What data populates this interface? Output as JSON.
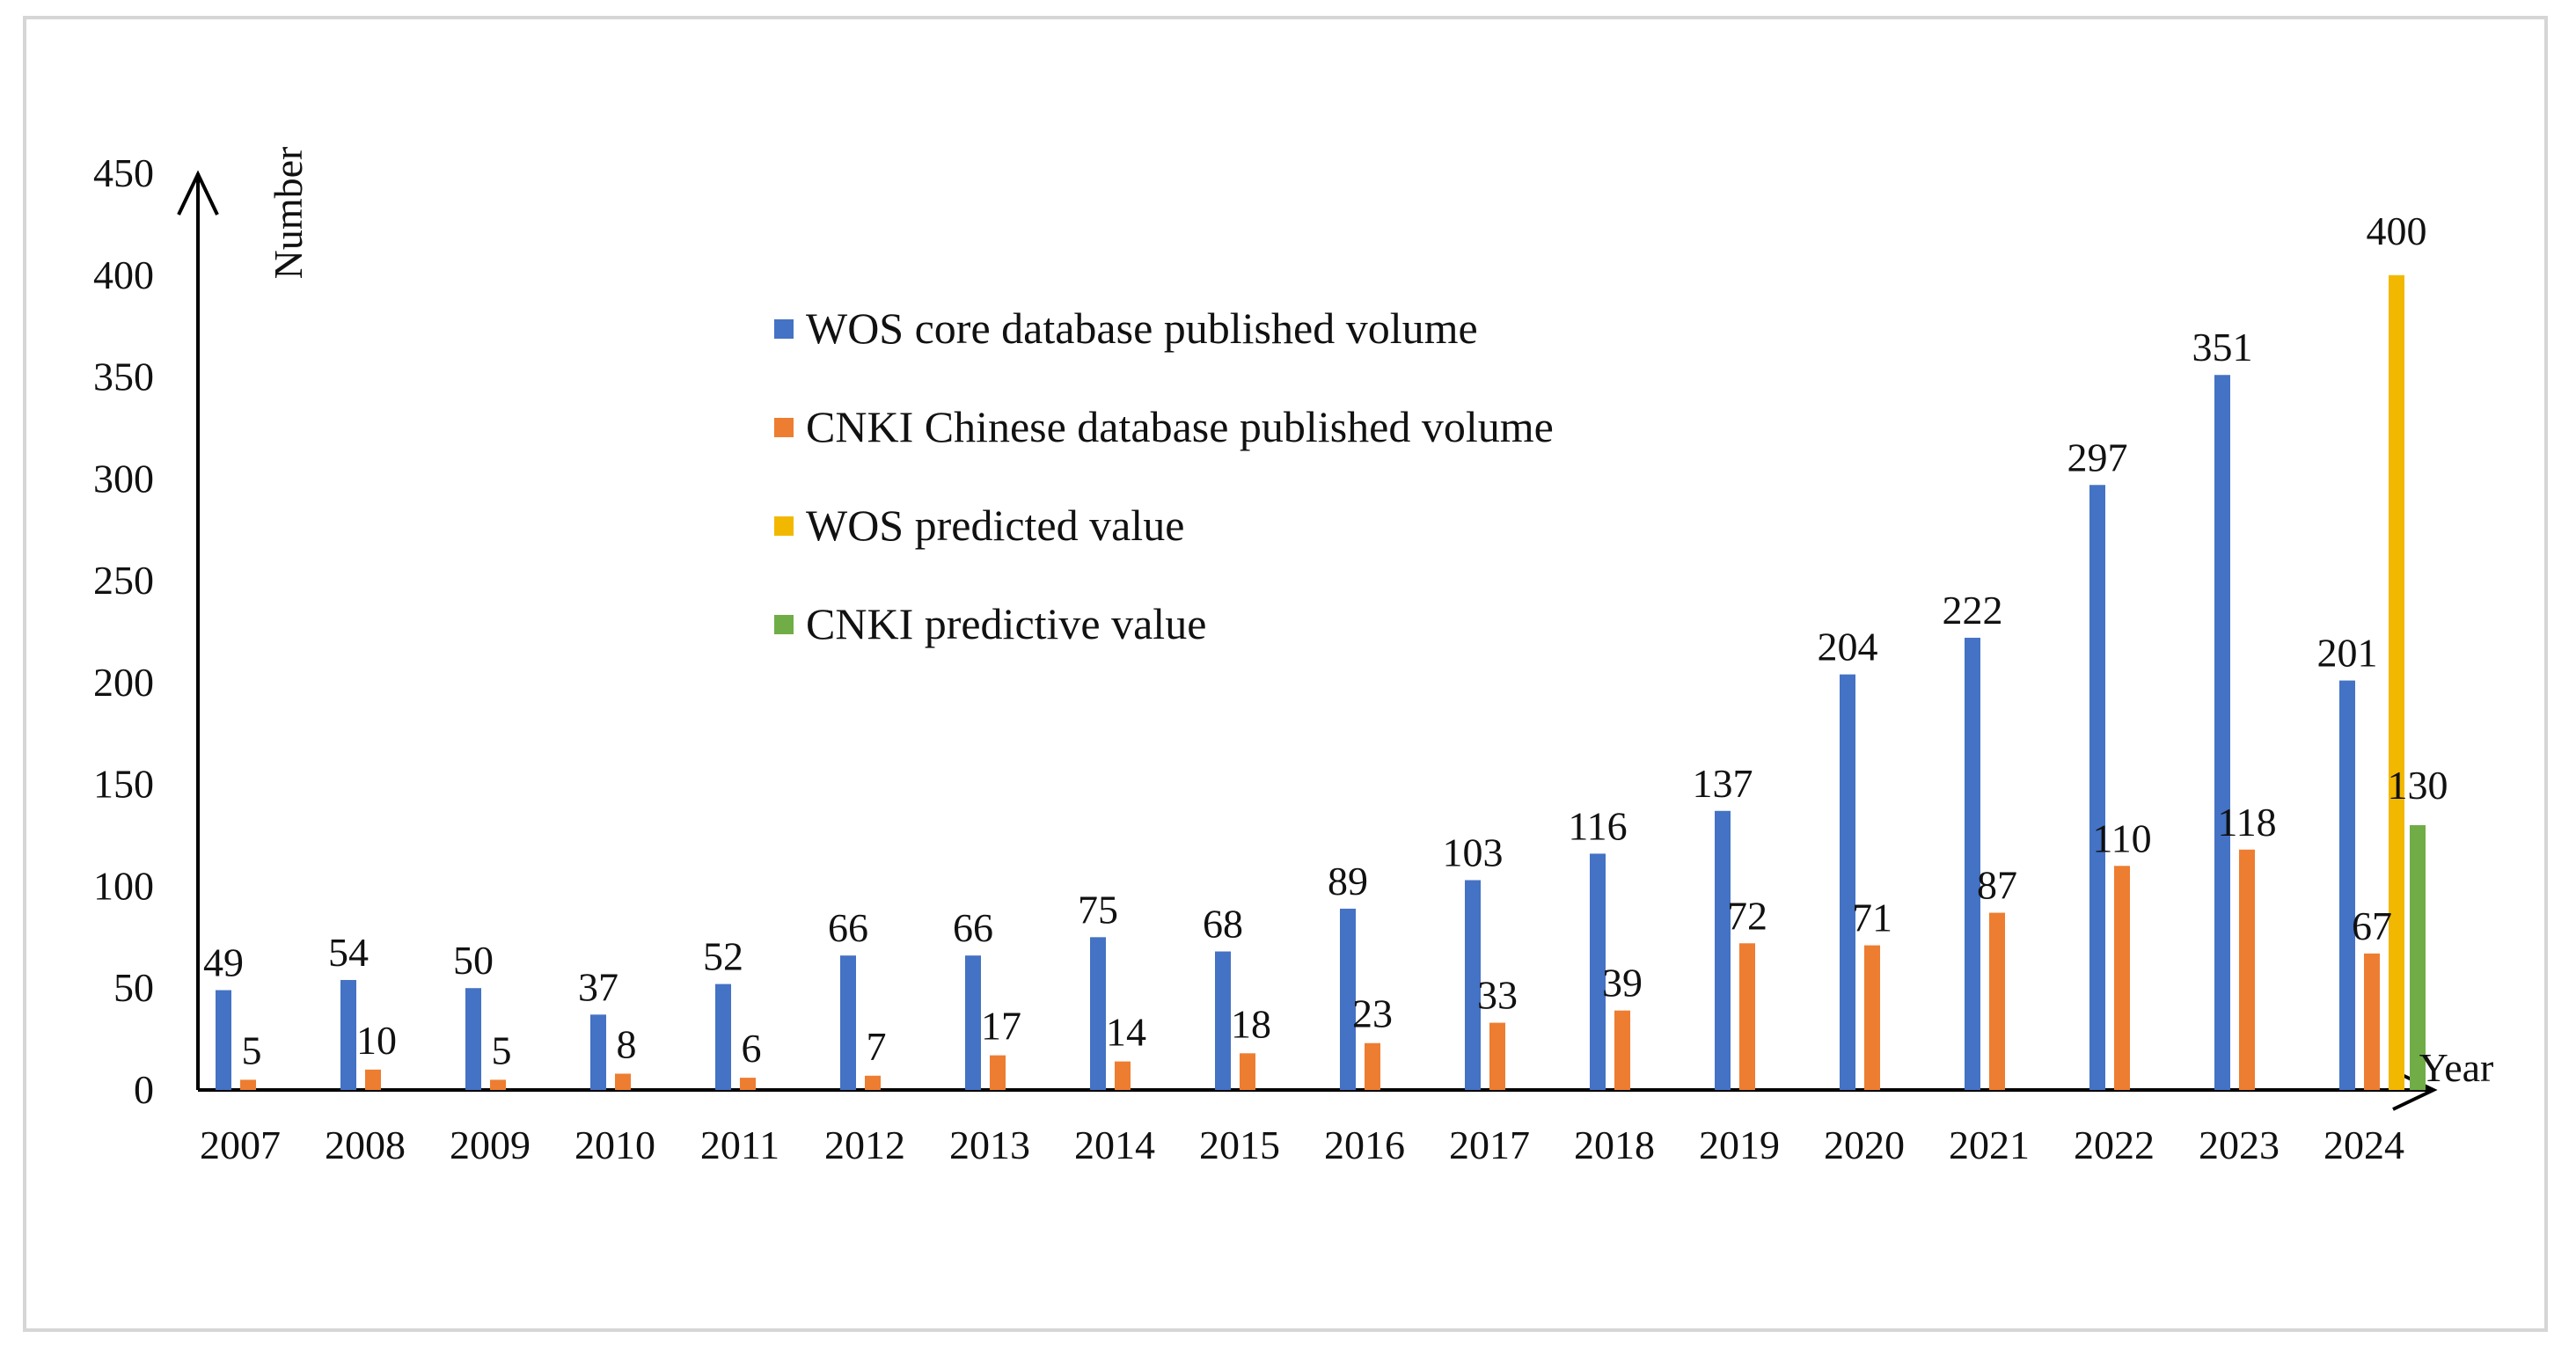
{
  "chart_data": {
    "type": "bar",
    "title": "",
    "xlabel": "Year",
    "ylabel": "Number",
    "ylim": [
      0,
      450
    ],
    "yticks": [
      0,
      50,
      100,
      150,
      200,
      250,
      300,
      350,
      400,
      450
    ],
    "categories": [
      "2007",
      "2008",
      "2009",
      "2010",
      "2011",
      "2012",
      "2013",
      "2014",
      "2015",
      "2016",
      "2017",
      "2018",
      "2019",
      "2020",
      "2021",
      "2022",
      "2023",
      "2024"
    ],
    "series": [
      {
        "name": "WOS core database published volume",
        "color": "#4472C4",
        "values": [
          49,
          54,
          50,
          37,
          52,
          66,
          66,
          75,
          68,
          89,
          103,
          116,
          137,
          204,
          222,
          297,
          351,
          201
        ]
      },
      {
        "name": "CNKI Chinese database published volume",
        "color": "#ED7D31",
        "values": [
          5,
          10,
          5,
          8,
          6,
          7,
          17,
          14,
          18,
          23,
          33,
          39,
          72,
          71,
          87,
          110,
          118,
          67
        ]
      },
      {
        "name": "WOS predicted value",
        "color": "#F2B800",
        "values": [
          null,
          null,
          null,
          null,
          null,
          null,
          null,
          null,
          null,
          null,
          null,
          null,
          null,
          null,
          null,
          null,
          null,
          400
        ]
      },
      {
        "name": "CNKI predictive value",
        "color": "#70AD47",
        "values": [
          null,
          null,
          null,
          null,
          null,
          null,
          null,
          null,
          null,
          null,
          null,
          null,
          null,
          null,
          null,
          null,
          null,
          130
        ]
      }
    ],
    "legend_position": "upper-center",
    "grid": false
  }
}
